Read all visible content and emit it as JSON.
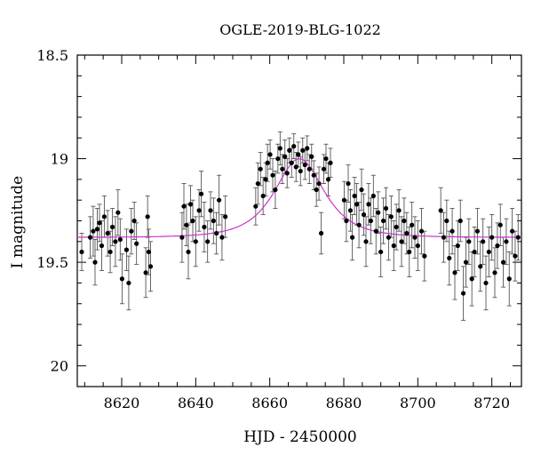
{
  "chart_data": {
    "type": "scatter",
    "title": "OGLE-2019-BLG-1022",
    "xlabel": "HJD - 2450000",
    "ylabel": "I magnitude",
    "xlim": [
      8608,
      8728
    ],
    "ylim": [
      20.1,
      18.5
    ],
    "y_inverted": true,
    "x_ticks": [
      8620,
      8640,
      8660,
      8680,
      8700,
      8720
    ],
    "y_ticks": [
      18.5,
      19,
      19.5,
      20
    ],
    "x_tick_labels": [
      "8620",
      "8640",
      "8660",
      "8680",
      "8700",
      "8720"
    ],
    "y_tick_labels": [
      "18.5",
      "19",
      "19.5",
      "20"
    ],
    "grid": false,
    "colors": {
      "points": "#000000",
      "model": "#cc33cc"
    },
    "model": {
      "baseline": 19.38,
      "peak": 19.0,
      "t0": 8668,
      "tE": 8.5
    },
    "series": [
      {
        "points": [
          [
            8609.2,
            19.45,
            0.09
          ],
          [
            8611.5,
            19.38,
            0.1
          ],
          [
            8612.3,
            19.35,
            0.12
          ],
          [
            8612.8,
            19.5,
            0.11
          ],
          [
            8613.4,
            19.34,
            0.1
          ],
          [
            8614.0,
            19.31,
            0.09
          ],
          [
            8614.6,
            19.42,
            0.12
          ],
          [
            8615.3,
            19.28,
            0.1
          ],
          [
            8616.2,
            19.36,
            0.11
          ],
          [
            8616.9,
            19.45,
            0.1
          ],
          [
            8617.5,
            19.33,
            0.09
          ],
          [
            8618.3,
            19.4,
            0.12
          ],
          [
            8619.0,
            19.26,
            0.11
          ],
          [
            8619.6,
            19.39,
            0.1
          ],
          [
            8620.1,
            19.58,
            0.12
          ],
          [
            8621.3,
            19.44,
            0.1
          ],
          [
            8621.9,
            19.6,
            0.13
          ],
          [
            8622.6,
            19.35,
            0.11
          ],
          [
            8623.4,
            19.3,
            0.09
          ],
          [
            8624.0,
            19.41,
            0.1
          ],
          [
            8626.5,
            19.55,
            0.12
          ],
          [
            8627.0,
            19.28,
            0.1
          ],
          [
            8627.3,
            19.45,
            0.11
          ],
          [
            8627.8,
            19.52,
            0.12
          ],
          [
            8636.3,
            19.38,
            0.12
          ],
          [
            8636.8,
            19.23,
            0.11
          ],
          [
            8637.5,
            19.32,
            0.1
          ],
          [
            8638.0,
            19.45,
            0.13
          ],
          [
            8638.6,
            19.22,
            0.09
          ],
          [
            8639.2,
            19.3,
            0.1
          ],
          [
            8640.0,
            19.4,
            0.12
          ],
          [
            8640.9,
            19.25,
            0.1
          ],
          [
            8641.5,
            19.17,
            0.11
          ],
          [
            8642.3,
            19.33,
            0.12
          ],
          [
            8643.2,
            19.4,
            0.1
          ],
          [
            8644.0,
            19.25,
            0.09
          ],
          [
            8644.8,
            19.3,
            0.11
          ],
          [
            8645.6,
            19.36,
            0.1
          ],
          [
            8646.3,
            19.2,
            0.12
          ],
          [
            8647.1,
            19.38,
            0.11
          ],
          [
            8648.0,
            19.28,
            0.1
          ],
          [
            8656.2,
            19.23,
            0.09
          ],
          [
            8656.8,
            19.12,
            0.1
          ],
          [
            8657.5,
            19.05,
            0.08
          ],
          [
            8658.2,
            19.18,
            0.09
          ],
          [
            8658.9,
            19.1,
            0.08
          ],
          [
            8659.4,
            19.02,
            0.09
          ],
          [
            8660.1,
            18.98,
            0.07
          ],
          [
            8660.8,
            19.08,
            0.08
          ],
          [
            8661.5,
            19.15,
            0.09
          ],
          [
            8662.2,
            19.0,
            0.07
          ],
          [
            8662.8,
            18.95,
            0.08
          ],
          [
            8663.4,
            19.05,
            0.07
          ],
          [
            8664.1,
            18.99,
            0.08
          ],
          [
            8664.7,
            19.07,
            0.07
          ],
          [
            8665.3,
            18.96,
            0.06
          ],
          [
            8665.9,
            19.02,
            0.07
          ],
          [
            8666.5,
            18.94,
            0.06
          ],
          [
            8667.1,
            19.04,
            0.07
          ],
          [
            8667.7,
            18.98,
            0.06
          ],
          [
            8668.3,
            19.06,
            0.07
          ],
          [
            8668.9,
            18.96,
            0.06
          ],
          [
            8669.5,
            19.03,
            0.07
          ],
          [
            8670.1,
            18.95,
            0.06
          ],
          [
            8670.7,
            19.05,
            0.07
          ],
          [
            8671.3,
            18.99,
            0.06
          ],
          [
            8671.9,
            19.08,
            0.07
          ],
          [
            8672.6,
            19.15,
            0.08
          ],
          [
            8673.3,
            19.12,
            0.08
          ],
          [
            8673.9,
            19.36,
            0.1
          ],
          [
            8674.6,
            19.05,
            0.07
          ],
          [
            8675.2,
            19.0,
            0.07
          ],
          [
            8675.8,
            19.1,
            0.08
          ],
          [
            8676.4,
            19.02,
            0.07
          ],
          [
            8680.1,
            19.2,
            0.09
          ],
          [
            8680.7,
            19.3,
            0.1
          ],
          [
            8681.2,
            19.12,
            0.09
          ],
          [
            8681.8,
            19.25,
            0.1
          ],
          [
            8682.3,
            19.38,
            0.11
          ],
          [
            8682.9,
            19.18,
            0.09
          ],
          [
            8683.5,
            19.22,
            0.1
          ],
          [
            8684.1,
            19.32,
            0.11
          ],
          [
            8684.8,
            19.15,
            0.1
          ],
          [
            8685.4,
            19.27,
            0.1
          ],
          [
            8686.0,
            19.4,
            0.12
          ],
          [
            8686.7,
            19.22,
            0.1
          ],
          [
            8687.3,
            19.3,
            0.11
          ],
          [
            8688.0,
            19.18,
            0.1
          ],
          [
            8688.7,
            19.35,
            0.11
          ],
          [
            8689.3,
            19.26,
            0.1
          ],
          [
            8690.0,
            19.45,
            0.12
          ],
          [
            8690.7,
            19.3,
            0.11
          ],
          [
            8691.4,
            19.24,
            0.1
          ],
          [
            8692.1,
            19.38,
            0.11
          ],
          [
            8692.8,
            19.28,
            0.1
          ],
          [
            8693.5,
            19.42,
            0.12
          ],
          [
            8694.2,
            19.33,
            0.11
          ],
          [
            8694.9,
            19.25,
            0.1
          ],
          [
            8695.6,
            19.4,
            0.12
          ],
          [
            8696.3,
            19.3,
            0.11
          ],
          [
            8697.0,
            19.36,
            0.1
          ],
          [
            8697.7,
            19.45,
            0.12
          ],
          [
            8698.4,
            19.32,
            0.11
          ],
          [
            8699.2,
            19.38,
            0.1
          ],
          [
            8700.0,
            19.42,
            0.12
          ],
          [
            8701.0,
            19.35,
            0.11
          ],
          [
            8701.8,
            19.47,
            0.12
          ],
          [
            8706.2,
            19.25,
            0.11
          ],
          [
            8707.0,
            19.38,
            0.12
          ],
          [
            8707.8,
            19.3,
            0.1
          ],
          [
            8708.5,
            19.48,
            0.13
          ],
          [
            8709.3,
            19.35,
            0.11
          ],
          [
            8710.0,
            19.55,
            0.13
          ],
          [
            8710.8,
            19.42,
            0.12
          ],
          [
            8711.5,
            19.3,
            0.1
          ],
          [
            8712.3,
            19.65,
            0.13
          ],
          [
            8713.0,
            19.5,
            0.12
          ],
          [
            8713.8,
            19.4,
            0.11
          ],
          [
            8714.6,
            19.58,
            0.13
          ],
          [
            8715.3,
            19.45,
            0.12
          ],
          [
            8716.1,
            19.35,
            0.11
          ],
          [
            8716.9,
            19.52,
            0.12
          ],
          [
            8717.6,
            19.4,
            0.11
          ],
          [
            8718.4,
            19.6,
            0.13
          ],
          [
            8719.2,
            19.45,
            0.12
          ],
          [
            8720.0,
            19.38,
            0.11
          ],
          [
            8720.8,
            19.55,
            0.12
          ],
          [
            8721.5,
            19.42,
            0.11
          ],
          [
            8722.3,
            19.32,
            0.1
          ],
          [
            8723.1,
            19.5,
            0.12
          ],
          [
            8723.9,
            19.4,
            0.11
          ],
          [
            8724.7,
            19.58,
            0.13
          ],
          [
            8725.5,
            19.35,
            0.11
          ],
          [
            8726.3,
            19.47,
            0.12
          ],
          [
            8727.1,
            19.38,
            0.11
          ]
        ]
      }
    ]
  }
}
